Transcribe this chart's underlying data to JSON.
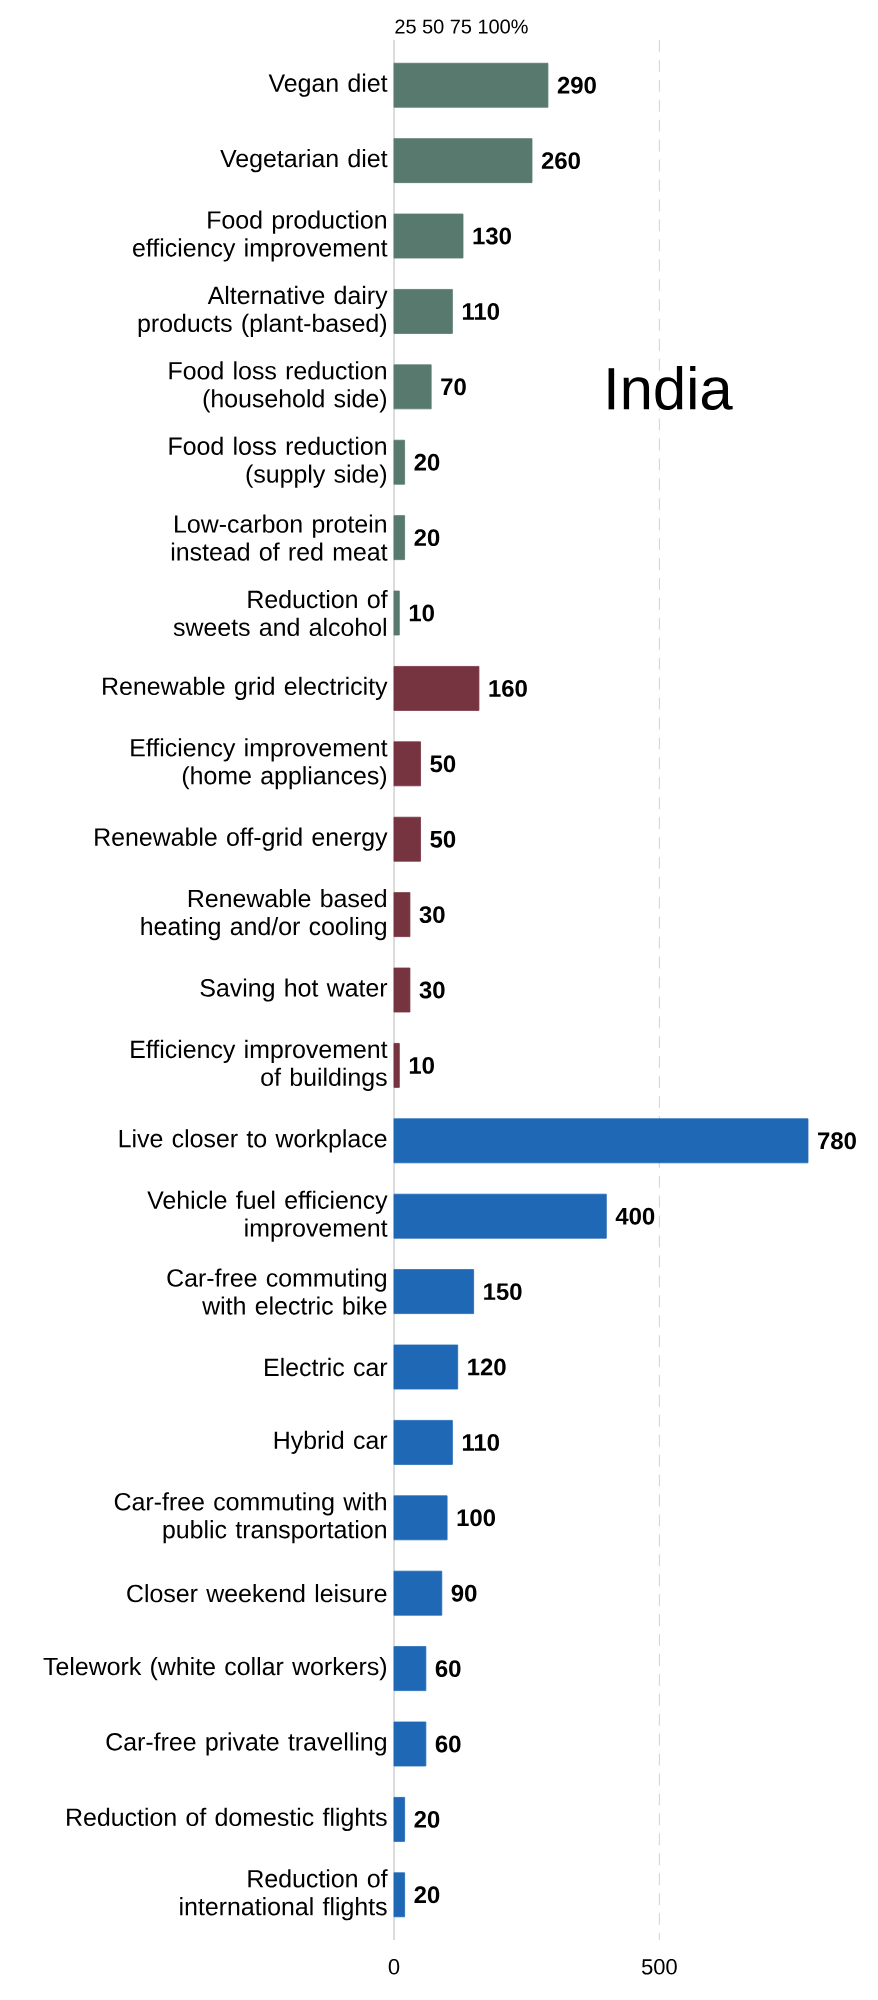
{
  "chart_data": {
    "type": "bar",
    "orientation": "horizontal",
    "categories": [
      "Vegan diet",
      "Vegetarian diet",
      "Food production efficiency improvement",
      "Alternative dairy products (plant-based)",
      "Food loss reduction (household side)",
      "Food loss reduction (supply side)",
      "Low-carbon protein instead of red meat",
      "Reduction of sweets and alcohol",
      "Renewable grid electricity",
      "Efficiency improvement (home appliances)",
      "Renewable off-grid energy",
      "Renewable based heating and/or cooling",
      "Saving hot water",
      "Efficiency improvement of buildings",
      "Live closer to workplace",
      "Vehicle fuel efficiency improvement",
      "Car-free commuting with electric bike",
      "Electric car",
      "Hybrid car",
      "Car-free commuting with public transportation",
      "Closer weekend leisure",
      "Telework (white collar workers)",
      "Car-free private travelling",
      "Reduction of domestic flights",
      "Reduction of international flights"
    ],
    "values": [
      290,
      260,
      130,
      110,
      70,
      20,
      20,
      10,
      160,
      50,
      50,
      30,
      30,
      10,
      780,
      400,
      150,
      120,
      110,
      100,
      90,
      60,
      60,
      20,
      20
    ],
    "colors": [
      "#587a6e",
      "#587a6e",
      "#587a6e",
      "#587a6e",
      "#587a6e",
      "#587a6e",
      "#587a6e",
      "#587a6e",
      "#763440",
      "#763440",
      "#763440",
      "#763440",
      "#763440",
      "#763440",
      "#1f68b5",
      "#1f68b5",
      "#1f68b5",
      "#1f68b5",
      "#1f68b5",
      "#1f68b5",
      "#1f68b5",
      "#1f68b5",
      "#1f68b5",
      "#1f68b5",
      "#1f68b5"
    ],
    "data_labels": true,
    "xlim": [
      0,
      780
    ],
    "xticks": [
      0,
      500
    ],
    "ref_lines": [
      {
        "axis": "x",
        "value": 500,
        "color": "#c8c8c8",
        "line_style": "dashed"
      }
    ],
    "annotations": [
      "India",
      "25 50 75 100%"
    ]
  }
}
